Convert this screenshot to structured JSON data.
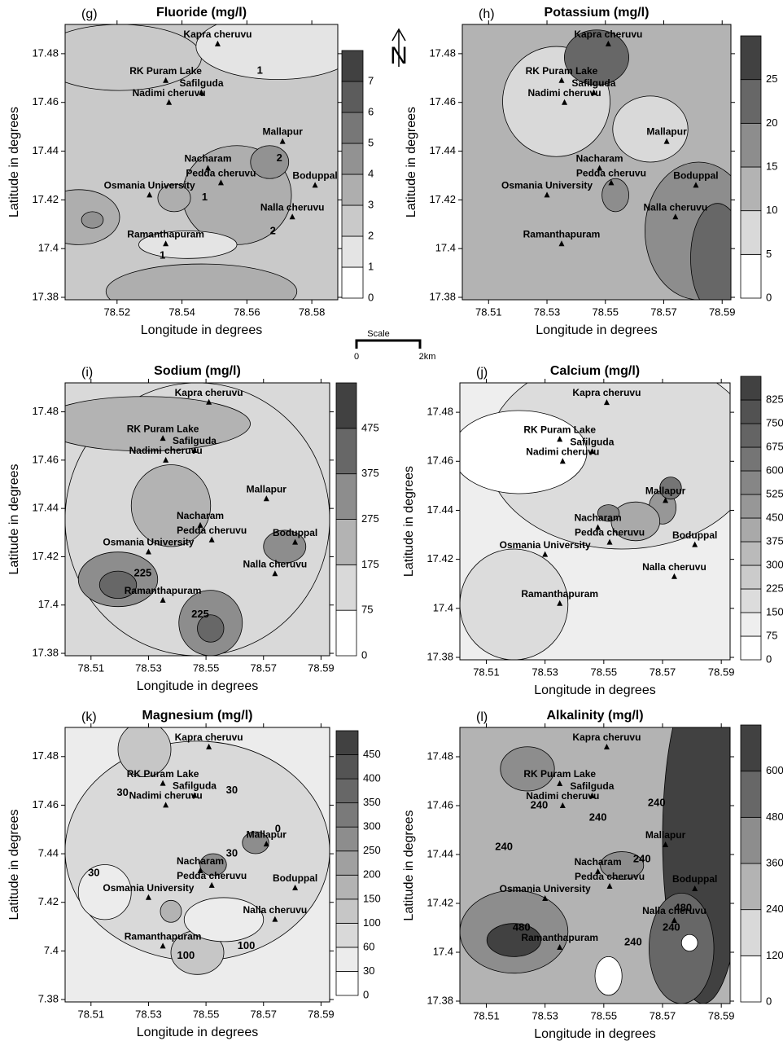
{
  "stations": [
    {
      "name": "Kapra cheruvu",
      "lon": 78.551,
      "lat": 17.484
    },
    {
      "name": "RK Puram Lake",
      "lon": 78.535,
      "lat": 17.469
    },
    {
      "name": "Safilguda",
      "lon": 78.546,
      "lat": 17.464
    },
    {
      "name": "Nadimi cheruvu",
      "lon": 78.536,
      "lat": 17.46
    },
    {
      "name": "Mallapur",
      "lon": 78.571,
      "lat": 17.444
    },
    {
      "name": "Nacharam",
      "lon": 78.548,
      "lat": 17.433
    },
    {
      "name": "Pedda cheruvu",
      "lon": 78.552,
      "lat": 17.427
    },
    {
      "name": "Boduppal",
      "lon": 78.581,
      "lat": 17.426
    },
    {
      "name": "Osmania University",
      "lon": 78.53,
      "lat": 17.422
    },
    {
      "name": "Nalla cheruvu",
      "lon": 78.574,
      "lat": 17.413
    },
    {
      "name": "Ramanthapuram",
      "lon": 78.535,
      "lat": 17.402
    }
  ],
  "north": "N",
  "scale": {
    "title": "Scale",
    "start": 0,
    "end": "2km"
  },
  "chart_data": [
    {
      "type": "contour",
      "panel": "(g)",
      "title": "Fluoride (mg/l)",
      "xlabel": "Longitude in degrees",
      "ylabel": "Latitude in degrees",
      "xlim": [
        78.504,
        78.588
      ],
      "ylim": [
        17.379,
        17.492
      ],
      "xticks": [
        78.52,
        78.54,
        78.56,
        78.58
      ],
      "yticks": [
        17.38,
        17.4,
        17.42,
        17.44,
        17.46,
        17.48
      ],
      "colorbar": [
        0,
        1,
        2,
        3,
        4,
        5,
        6,
        7
      ],
      "contour_labels": [
        {
          "level": 1,
          "lon": 78.564,
          "lat": 17.473
        },
        {
          "level": 2,
          "lon": 78.57,
          "lat": 17.437
        },
        {
          "level": 1,
          "lon": 78.547,
          "lat": 17.421
        },
        {
          "level": 2,
          "lon": 78.568,
          "lat": 17.407
        },
        {
          "level": 1,
          "lon": 78.534,
          "lat": 17.397
        }
      ]
    },
    {
      "type": "contour",
      "panel": "(h)",
      "title": "Potassium (mg/l)",
      "xlabel": "Longitude in degrees",
      "ylabel": "Latitude in degrees",
      "xlim": [
        78.501,
        78.593
      ],
      "ylim": [
        17.379,
        17.492
      ],
      "xticks": [
        78.51,
        78.53,
        78.55,
        78.57,
        78.59
      ],
      "yticks": [
        17.38,
        17.4,
        17.42,
        17.44,
        17.46,
        17.48
      ],
      "colorbar": [
        0,
        5,
        10,
        15,
        20,
        25
      ],
      "contour_labels": []
    },
    {
      "type": "contour",
      "panel": "(i)",
      "title": "Sodium (mg/l)",
      "xlabel": "Longitude in degrees",
      "ylabel": "Latitude in degrees",
      "xlim": [
        78.501,
        78.593
      ],
      "ylim": [
        17.379,
        17.492
      ],
      "xticks": [
        78.51,
        78.53,
        78.55,
        78.57,
        78.59
      ],
      "yticks": [
        17.38,
        17.4,
        17.42,
        17.44,
        17.46,
        17.48
      ],
      "colorbar": [
        0,
        75,
        175,
        275,
        375,
        475
      ],
      "contour_labels": [
        {
          "level": 225,
          "lon": 78.528,
          "lat": 17.413
        },
        {
          "level": 225,
          "lon": 78.548,
          "lat": 17.396
        }
      ]
    },
    {
      "type": "contour",
      "panel": "(j)",
      "title": "Calcium (mg/l)",
      "xlabel": "Longitude in degrees",
      "ylabel": "Latitude in degrees",
      "xlim": [
        78.501,
        78.593
      ],
      "ylim": [
        17.379,
        17.492
      ],
      "xticks": [
        78.51,
        78.53,
        78.55,
        78.57,
        78.59
      ],
      "yticks": [
        17.38,
        17.4,
        17.42,
        17.44,
        17.46,
        17.48
      ],
      "colorbar": [
        0,
        75,
        150,
        225,
        300,
        375,
        450,
        525,
        600,
        675,
        750,
        825
      ],
      "contour_labels": []
    },
    {
      "type": "contour",
      "panel": "(k)",
      "title": "Magnesium (mg/l)",
      "xlabel": "Longitude in degrees",
      "ylabel": "Latitude in degrees",
      "xlim": [
        78.501,
        78.593
      ],
      "ylim": [
        17.379,
        17.492
      ],
      "xticks": [
        78.51,
        78.53,
        78.55,
        78.57,
        78.59
      ],
      "yticks": [
        {
          "value": 17.38,
          "label": "7.38"
        },
        {
          "value": 17.4,
          "label": "7.4"
        },
        {
          "value": 17.42,
          "label": "7.42"
        },
        {
          "value": 17.44,
          "label": "7.44"
        },
        17.46,
        17.48
      ],
      "colorbar": [
        0,
        30,
        60,
        100,
        150,
        200,
        250,
        300,
        350,
        400,
        450
      ],
      "contour_labels": [
        {
          "level": 30,
          "lon": 78.521,
          "lat": 17.465
        },
        {
          "level": 30,
          "lon": 78.559,
          "lat": 17.466
        },
        {
          "level": 0,
          "lon": 78.575,
          "lat": 17.45
        },
        {
          "level": 30,
          "lon": 78.559,
          "lat": 17.44
        },
        {
          "level": 30,
          "lon": 78.511,
          "lat": 17.432
        },
        {
          "level": 100,
          "lon": 78.543,
          "lat": 17.398
        },
        {
          "level": 100,
          "lon": 78.564,
          "lat": 17.402
        }
      ]
    },
    {
      "type": "contour",
      "panel": "(l)",
      "title": "Alkalinity (mg/l)",
      "xlabel": "Longitude in degrees",
      "ylabel": "Latitude in degrees",
      "xlim": [
        78.501,
        78.593
      ],
      "ylim": [
        17.379,
        17.492
      ],
      "xticks": [
        78.51,
        78.53,
        78.55,
        78.57,
        78.59
      ],
      "yticks": [
        17.38,
        17.4,
        17.42,
        17.44,
        17.46,
        17.48
      ],
      "colorbar": [
        0,
        120,
        240,
        360,
        480,
        600
      ],
      "contour_labels": [
        {
          "level": 240,
          "lon": 78.528,
          "lat": 17.46
        },
        {
          "level": 240,
          "lon": 78.548,
          "lat": 17.455
        },
        {
          "level": 240,
          "lon": 78.568,
          "lat": 17.461
        },
        {
          "level": 240,
          "lon": 78.516,
          "lat": 17.443
        },
        {
          "level": 240,
          "lon": 78.563,
          "lat": 17.438
        },
        {
          "level": 480,
          "lon": 78.522,
          "lat": 17.41
        },
        {
          "level": 240,
          "lon": 78.56,
          "lat": 17.404
        },
        {
          "level": 240,
          "lon": 78.573,
          "lat": 17.41
        },
        {
          "level": 480,
          "lon": 78.577,
          "lat": 17.418
        }
      ]
    }
  ]
}
